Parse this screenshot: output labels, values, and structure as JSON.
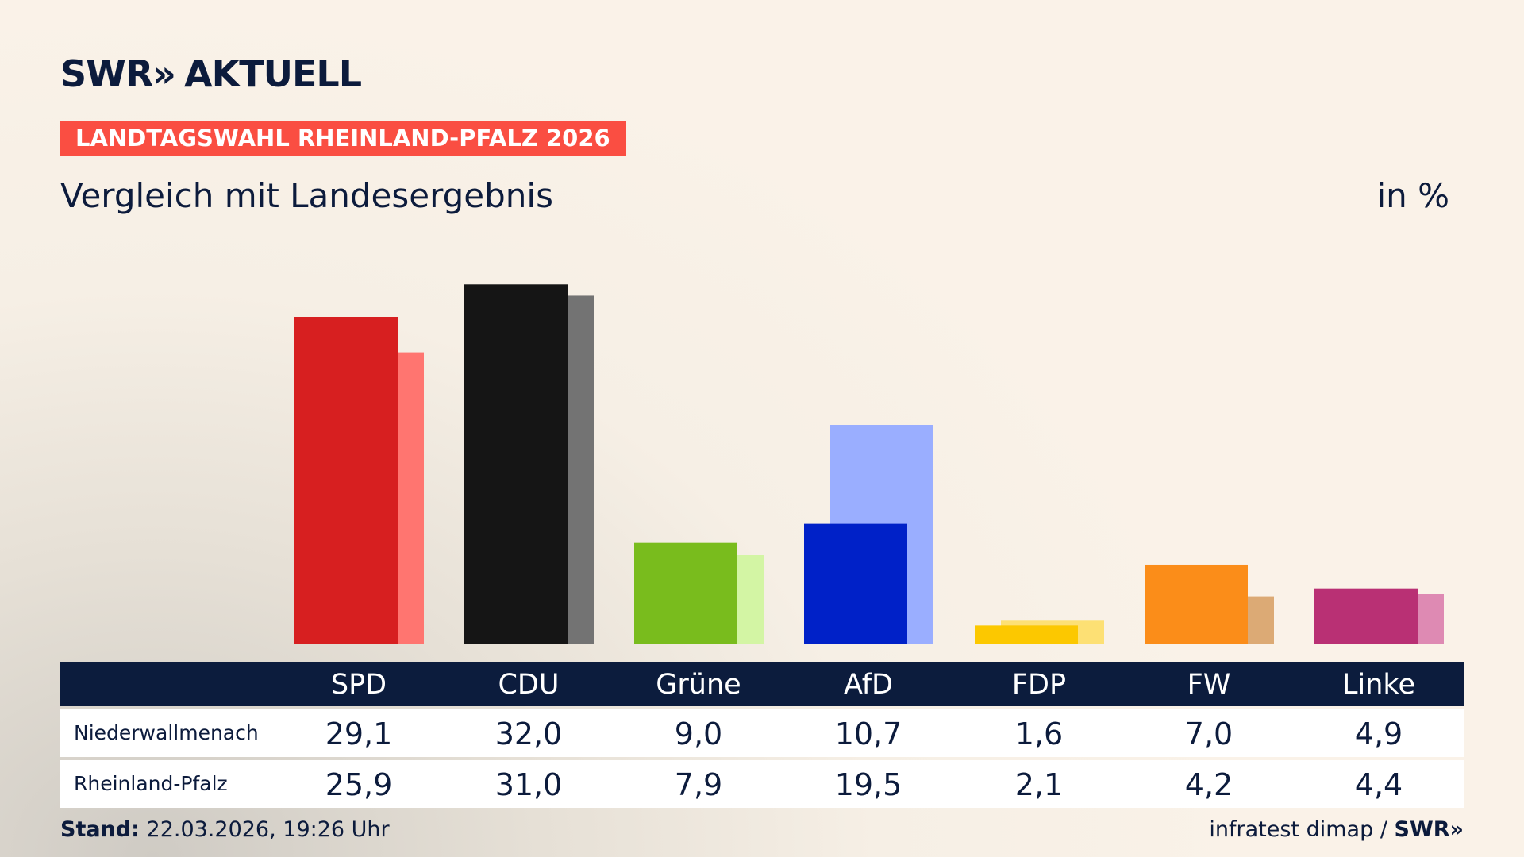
{
  "header": {
    "logo_text": "SWR",
    "logo_arrows": "»",
    "logo_suffix": "AKTUELL",
    "badge": "LANDTAGSWAHL RHEINLAND-PFALZ 2026",
    "subtitle": "Vergleich mit Landesergebnis",
    "unit": "in %"
  },
  "colors": {
    "primary": [
      "#d71f20",
      "#151515",
      "#79bc1d",
      "#0021c8",
      "#fcc800",
      "#fb8d19",
      "#b93074"
    ],
    "secondary": [
      "#ff7570",
      "#737373",
      "#d3f5a4",
      "#9aaeff",
      "#fde074",
      "#dcaa75",
      "#de8ab3"
    ],
    "table_header_bg": "#0c1c3d",
    "badge_bg": "#fa4e42"
  },
  "chart_data": {
    "type": "bar",
    "categories": [
      "SPD",
      "CDU",
      "Grüne",
      "AfD",
      "FDP",
      "FW",
      "Linke"
    ],
    "series": [
      {
        "name": "Niederwallmenach",
        "values": [
          29.1,
          32.0,
          9.0,
          10.7,
          1.6,
          7.0,
          4.9
        ]
      },
      {
        "name": "Rheinland-Pfalz",
        "values": [
          25.9,
          31.0,
          7.9,
          19.5,
          2.1,
          4.2,
          4.4
        ]
      }
    ],
    "ylim": [
      0,
      34
    ],
    "grid": false
  },
  "table": {
    "rows": [
      {
        "label": "Niederwallmenach",
        "values": [
          "29,1",
          "32,0",
          "9,0",
          "10,7",
          "1,6",
          "7,0",
          "4,9"
        ]
      },
      {
        "label": "Rheinland-Pfalz",
        "values": [
          "25,9",
          "31,0",
          "7,9",
          "19,5",
          "2,1",
          "4,2",
          "4,4"
        ]
      }
    ]
  },
  "footer": {
    "stand_label": "Stand:",
    "stand_value": "22.03.2026, 19:26 Uhr",
    "source": "infratest dimap /",
    "source_logo": "SWR",
    "source_arrows": "»"
  }
}
